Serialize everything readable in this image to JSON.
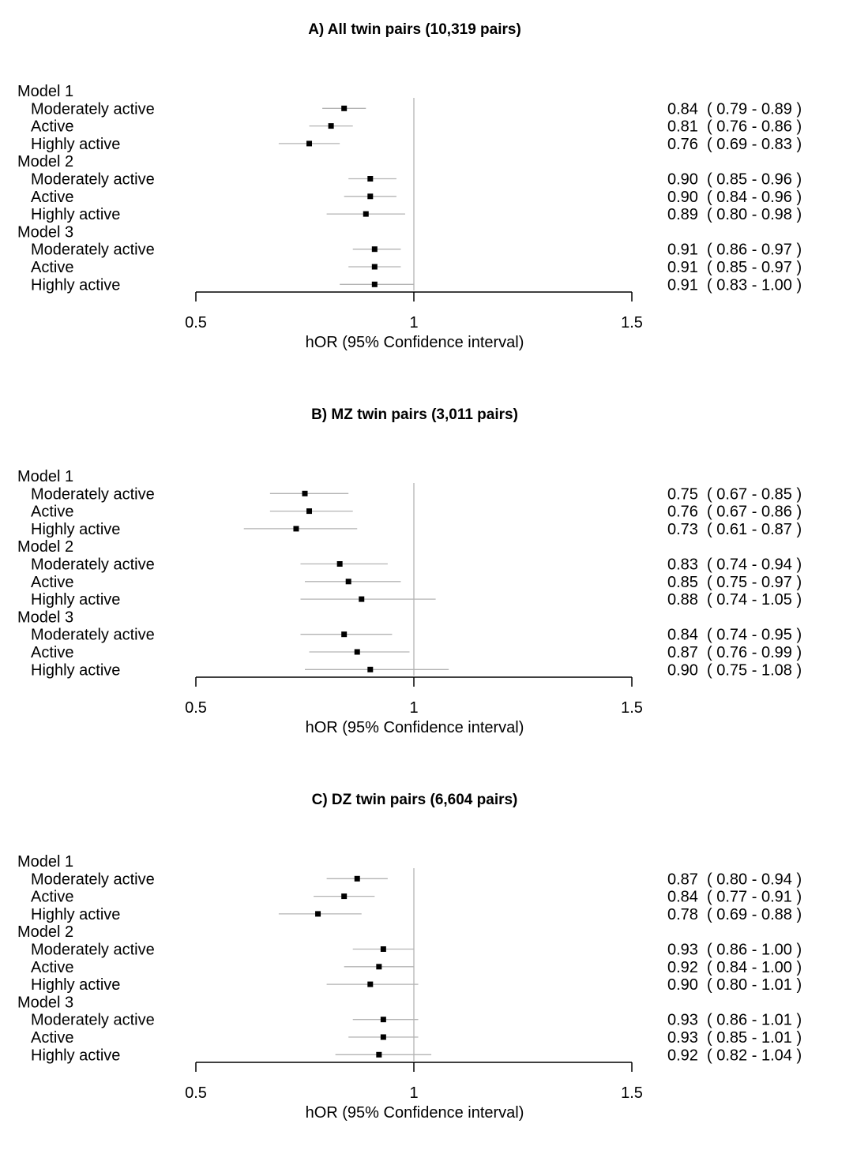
{
  "chart_data": [
    {
      "type": "forest",
      "title": "A) All twin pairs (10,319 pairs)",
      "xlabel": "hOR (95% Confidence interval)",
      "xlim": [
        0.5,
        1.5
      ],
      "ticks": [
        "0.5",
        "1",
        "1.5"
      ],
      "reference_line": 1,
      "groups": [
        {
          "label": "Model 1",
          "rows": [
            {
              "label": "Moderately active",
              "est": 0.84,
              "lo": 0.79,
              "hi": 0.89,
              "text": "0.84  ( 0.79 - 0.89 )"
            },
            {
              "label": "Active",
              "est": 0.81,
              "lo": 0.76,
              "hi": 0.86,
              "text": "0.81  ( 0.76 - 0.86 )"
            },
            {
              "label": "Highly active",
              "est": 0.76,
              "lo": 0.69,
              "hi": 0.83,
              "text": "0.76  ( 0.69 - 0.83 )"
            }
          ]
        },
        {
          "label": "Model 2",
          "rows": [
            {
              "label": "Moderately active",
              "est": 0.9,
              "lo": 0.85,
              "hi": 0.96,
              "text": "0.90  ( 0.85 - 0.96 )"
            },
            {
              "label": "Active",
              "est": 0.9,
              "lo": 0.84,
              "hi": 0.96,
              "text": "0.90  ( 0.84 - 0.96 )"
            },
            {
              "label": "Highly active",
              "est": 0.89,
              "lo": 0.8,
              "hi": 0.98,
              "text": "0.89  ( 0.80 - 0.98 )"
            }
          ]
        },
        {
          "label": "Model 3",
          "rows": [
            {
              "label": "Moderately active",
              "est": 0.91,
              "lo": 0.86,
              "hi": 0.97,
              "text": "0.91  ( 0.86 - 0.97 )"
            },
            {
              "label": "Active",
              "est": 0.91,
              "lo": 0.85,
              "hi": 0.97,
              "text": "0.91  ( 0.85 - 0.97 )"
            },
            {
              "label": "Highly active",
              "est": 0.91,
              "lo": 0.83,
              "hi": 1.0,
              "text": "0.91  ( 0.83 - 1.00 )"
            }
          ]
        }
      ]
    },
    {
      "type": "forest",
      "title": "B) MZ twin pairs (3,011 pairs)",
      "xlabel": "hOR (95% Confidence interval)",
      "xlim": [
        0.5,
        1.5
      ],
      "ticks": [
        "0.5",
        "1",
        "1.5"
      ],
      "reference_line": 1,
      "groups": [
        {
          "label": "Model 1",
          "rows": [
            {
              "label": "Moderately active",
              "est": 0.75,
              "lo": 0.67,
              "hi": 0.85,
              "text": "0.75  ( 0.67 - 0.85 )"
            },
            {
              "label": "Active",
              "est": 0.76,
              "lo": 0.67,
              "hi": 0.86,
              "text": "0.76  ( 0.67 - 0.86 )"
            },
            {
              "label": "Highly active",
              "est": 0.73,
              "lo": 0.61,
              "hi": 0.87,
              "text": "0.73  ( 0.61 - 0.87 )"
            }
          ]
        },
        {
          "label": "Model 2",
          "rows": [
            {
              "label": "Moderately active",
              "est": 0.83,
              "lo": 0.74,
              "hi": 0.94,
              "text": "0.83  ( 0.74 - 0.94 )"
            },
            {
              "label": "Active",
              "est": 0.85,
              "lo": 0.75,
              "hi": 0.97,
              "text": "0.85  ( 0.75 - 0.97 )"
            },
            {
              "label": "Highly active",
              "est": 0.88,
              "lo": 0.74,
              "hi": 1.05,
              "text": "0.88  ( 0.74 - 1.05 )"
            }
          ]
        },
        {
          "label": "Model 3",
          "rows": [
            {
              "label": "Moderately active",
              "est": 0.84,
              "lo": 0.74,
              "hi": 0.95,
              "text": "0.84  ( 0.74 - 0.95 )"
            },
            {
              "label": "Active",
              "est": 0.87,
              "lo": 0.76,
              "hi": 0.99,
              "text": "0.87  ( 0.76 - 0.99 )"
            },
            {
              "label": "Highly active",
              "est": 0.9,
              "lo": 0.75,
              "hi": 1.08,
              "text": "0.90  ( 0.75 - 1.08 )"
            }
          ]
        }
      ]
    },
    {
      "type": "forest",
      "title": "C) DZ twin pairs (6,604 pairs)",
      "xlabel": "hOR (95% Confidence interval)",
      "xlim": [
        0.5,
        1.5
      ],
      "ticks": [
        "0.5",
        "1",
        "1.5"
      ],
      "reference_line": 1,
      "groups": [
        {
          "label": "Model 1",
          "rows": [
            {
              "label": "Moderately active",
              "est": 0.87,
              "lo": 0.8,
              "hi": 0.94,
              "text": "0.87  ( 0.80 - 0.94 )"
            },
            {
              "label": "Active",
              "est": 0.84,
              "lo": 0.77,
              "hi": 0.91,
              "text": "0.84  ( 0.77 - 0.91 )"
            },
            {
              "label": "Highly active",
              "est": 0.78,
              "lo": 0.69,
              "hi": 0.88,
              "text": "0.78  ( 0.69 - 0.88 )"
            }
          ]
        },
        {
          "label": "Model 2",
          "rows": [
            {
              "label": "Moderately active",
              "est": 0.93,
              "lo": 0.86,
              "hi": 1.0,
              "text": "0.93  ( 0.86 - 1.00 )"
            },
            {
              "label": "Active",
              "est": 0.92,
              "lo": 0.84,
              "hi": 1.0,
              "text": "0.92  ( 0.84 - 1.00 )"
            },
            {
              "label": "Highly active",
              "est": 0.9,
              "lo": 0.8,
              "hi": 1.01,
              "text": "0.90  ( 0.80 - 1.01 )"
            }
          ]
        },
        {
          "label": "Model 3",
          "rows": [
            {
              "label": "Moderately active",
              "est": 0.93,
              "lo": 0.86,
              "hi": 1.01,
              "text": "0.93  ( 0.86 - 1.01 )"
            },
            {
              "label": "Active",
              "est": 0.93,
              "lo": 0.85,
              "hi": 1.01,
              "text": "0.93  ( 0.85 - 1.01 )"
            },
            {
              "label": "Highly active",
              "est": 0.92,
              "lo": 0.82,
              "hi": 1.04,
              "text": "0.92  ( 0.82 - 1.04 )"
            }
          ]
        }
      ]
    }
  ]
}
